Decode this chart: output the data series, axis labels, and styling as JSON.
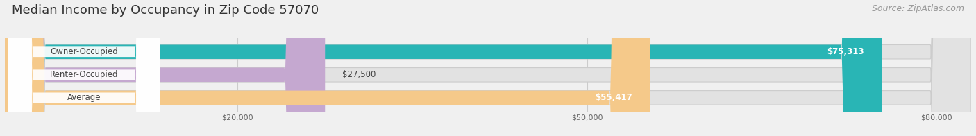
{
  "title": "Median Income by Occupancy in Zip Code 57070",
  "source": "Source: ZipAtlas.com",
  "categories": [
    "Owner-Occupied",
    "Renter-Occupied",
    "Average"
  ],
  "values": [
    75313,
    27500,
    55417
  ],
  "value_labels": [
    "$75,313",
    "$27,500",
    "$55,417"
  ],
  "bar_colors": [
    "#29b5b5",
    "#c5a8d0",
    "#f5c98a"
  ],
  "background_color": "#f0f0f0",
  "bar_bg_color": "#e2e2e2",
  "label_pill_color": "#ffffff",
  "xlim_max": 83000,
  "xlim_min": 0,
  "xticks": [
    20000,
    50000,
    80000
  ],
  "xtick_labels": [
    "$20,000",
    "$50,000",
    "$80,000"
  ],
  "title_fontsize": 13,
  "source_fontsize": 9,
  "cat_label_fontsize": 8.5,
  "val_label_fontsize": 8.5,
  "bar_height": 0.62,
  "bar_gap": 0.38
}
